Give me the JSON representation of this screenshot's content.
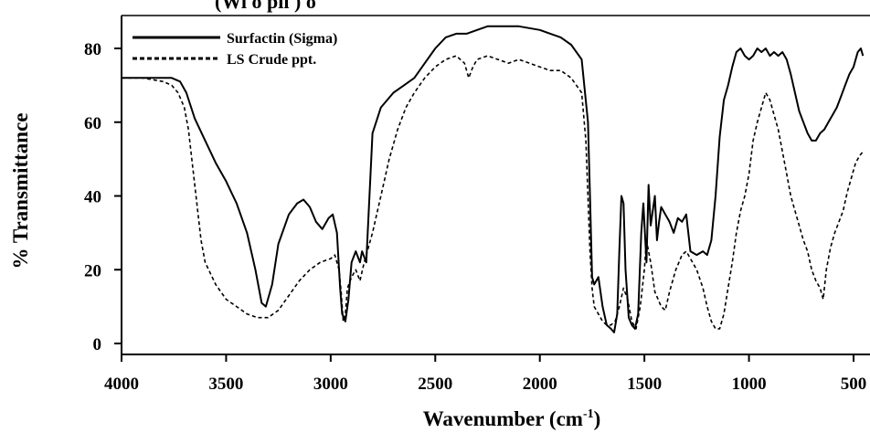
{
  "chart_data": {
    "type": "line",
    "title": "",
    "top_clipped_text": "(Wi o pli ) o",
    "xlabel": "Wavenumber (cm",
    "xlabel_sup": "-1",
    "xlabel_close": ")",
    "ylabel": "% Transmittance",
    "xlim": [
      4000,
      450
    ],
    "ylim": [
      -5,
      88
    ],
    "x_ticks": [
      4000,
      3500,
      3000,
      2500,
      2000,
      1500,
      1000,
      500
    ],
    "x_tick_labels": [
      "4000",
      "3500",
      "3000",
      "2500",
      "2000",
      "1500",
      "1000",
      "500"
    ],
    "y_ticks": [
      0,
      20,
      40,
      60,
      80
    ],
    "y_tick_labels": [
      "0",
      "20",
      "40",
      "60",
      "80"
    ],
    "grid": false,
    "legend_position": "top-left",
    "series": [
      {
        "name": "Surfactin (Sigma)",
        "style": "solid",
        "color": "#000000",
        "points": [
          [
            4000,
            72
          ],
          [
            3850,
            72
          ],
          [
            3760,
            72
          ],
          [
            3720,
            71
          ],
          [
            3690,
            68
          ],
          [
            3650,
            61
          ],
          [
            3600,
            55
          ],
          [
            3550,
            49
          ],
          [
            3500,
            44
          ],
          [
            3450,
            38
          ],
          [
            3400,
            30
          ],
          [
            3360,
            20
          ],
          [
            3330,
            11
          ],
          [
            3310,
            10
          ],
          [
            3280,
            16
          ],
          [
            3250,
            27
          ],
          [
            3200,
            35
          ],
          [
            3160,
            38
          ],
          [
            3130,
            39
          ],
          [
            3100,
            37
          ],
          [
            3070,
            33
          ],
          [
            3040,
            31
          ],
          [
            3010,
            34
          ],
          [
            2990,
            35
          ],
          [
            2970,
            30
          ],
          [
            2955,
            15
          ],
          [
            2945,
            8
          ],
          [
            2930,
            6
          ],
          [
            2915,
            12
          ],
          [
            2900,
            22
          ],
          [
            2880,
            25
          ],
          [
            2860,
            22
          ],
          [
            2850,
            25
          ],
          [
            2830,
            22
          ],
          [
            2800,
            57
          ],
          [
            2760,
            64
          ],
          [
            2700,
            68
          ],
          [
            2650,
            70
          ],
          [
            2600,
            72
          ],
          [
            2550,
            76
          ],
          [
            2500,
            80
          ],
          [
            2450,
            83
          ],
          [
            2400,
            84
          ],
          [
            2350,
            84
          ],
          [
            2300,
            85
          ],
          [
            2250,
            86
          ],
          [
            2200,
            86
          ],
          [
            2100,
            86
          ],
          [
            2000,
            85
          ],
          [
            1950,
            84
          ],
          [
            1900,
            83
          ],
          [
            1850,
            81
          ],
          [
            1800,
            77
          ],
          [
            1770,
            60
          ],
          [
            1760,
            40
          ],
          [
            1750,
            18
          ],
          [
            1740,
            16
          ],
          [
            1720,
            18
          ],
          [
            1700,
            10
          ],
          [
            1680,
            5
          ],
          [
            1660,
            4
          ],
          [
            1645,
            3
          ],
          [
            1630,
            8
          ],
          [
            1620,
            25
          ],
          [
            1610,
            40
          ],
          [
            1600,
            38
          ],
          [
            1590,
            20
          ],
          [
            1575,
            7
          ],
          [
            1560,
            5
          ],
          [
            1545,
            4
          ],
          [
            1530,
            8
          ],
          [
            1515,
            30
          ],
          [
            1505,
            38
          ],
          [
            1490,
            22
          ],
          [
            1480,
            43
          ],
          [
            1470,
            32
          ],
          [
            1460,
            36
          ],
          [
            1450,
            40
          ],
          [
            1440,
            28
          ],
          [
            1430,
            33
          ],
          [
            1420,
            37
          ],
          [
            1400,
            35
          ],
          [
            1380,
            33
          ],
          [
            1360,
            30
          ],
          [
            1340,
            34
          ],
          [
            1320,
            33
          ],
          [
            1300,
            35
          ],
          [
            1280,
            25
          ],
          [
            1250,
            24
          ],
          [
            1220,
            25
          ],
          [
            1200,
            24
          ],
          [
            1180,
            28
          ],
          [
            1160,
            40
          ],
          [
            1140,
            56
          ],
          [
            1120,
            66
          ],
          [
            1100,
            70
          ],
          [
            1080,
            75
          ],
          [
            1060,
            79
          ],
          [
            1040,
            80
          ],
          [
            1020,
            78
          ],
          [
            1000,
            77
          ],
          [
            980,
            78
          ],
          [
            960,
            80
          ],
          [
            940,
            79
          ],
          [
            920,
            80
          ],
          [
            900,
            78
          ],
          [
            880,
            79
          ],
          [
            860,
            78
          ],
          [
            840,
            79
          ],
          [
            820,
            77
          ],
          [
            800,
            73
          ],
          [
            780,
            68
          ],
          [
            760,
            63
          ],
          [
            740,
            60
          ],
          [
            720,
            57
          ],
          [
            700,
            55
          ],
          [
            680,
            55
          ],
          [
            660,
            57
          ],
          [
            640,
            58
          ],
          [
            620,
            60
          ],
          [
            600,
            62
          ],
          [
            580,
            64
          ],
          [
            560,
            67
          ],
          [
            540,
            70
          ],
          [
            520,
            73
          ],
          [
            500,
            75
          ],
          [
            480,
            79
          ],
          [
            465,
            80
          ],
          [
            455,
            78
          ]
        ]
      },
      {
        "name": "LS Crude ppt.",
        "style": "dashed",
        "color": "#000000",
        "points": [
          [
            4000,
            72
          ],
          [
            3900,
            72
          ],
          [
            3800,
            71
          ],
          [
            3760,
            70
          ],
          [
            3730,
            68
          ],
          [
            3700,
            64
          ],
          [
            3680,
            58
          ],
          [
            3660,
            48
          ],
          [
            3640,
            38
          ],
          [
            3620,
            28
          ],
          [
            3600,
            22
          ],
          [
            3550,
            16
          ],
          [
            3500,
            12
          ],
          [
            3450,
            10
          ],
          [
            3400,
            8
          ],
          [
            3350,
            7
          ],
          [
            3300,
            7
          ],
          [
            3250,
            9
          ],
          [
            3200,
            13
          ],
          [
            3150,
            17
          ],
          [
            3100,
            20
          ],
          [
            3050,
            22
          ],
          [
            3000,
            23
          ],
          [
            2980,
            24
          ],
          [
            2960,
            20
          ],
          [
            2950,
            14
          ],
          [
            2940,
            6
          ],
          [
            2930,
            8
          ],
          [
            2920,
            15
          ],
          [
            2900,
            18
          ],
          [
            2880,
            20
          ],
          [
            2860,
            17
          ],
          [
            2840,
            22
          ],
          [
            2800,
            30
          ],
          [
            2760,
            40
          ],
          [
            2720,
            50
          ],
          [
            2680,
            58
          ],
          [
            2640,
            64
          ],
          [
            2600,
            68
          ],
          [
            2550,
            72
          ],
          [
            2500,
            75
          ],
          [
            2450,
            77
          ],
          [
            2400,
            78
          ],
          [
            2360,
            76
          ],
          [
            2340,
            72
          ],
          [
            2320,
            75
          ],
          [
            2300,
            77
          ],
          [
            2250,
            78
          ],
          [
            2200,
            77
          ],
          [
            2150,
            76
          ],
          [
            2100,
            77
          ],
          [
            2050,
            76
          ],
          [
            2000,
            75
          ],
          [
            1950,
            74
          ],
          [
            1900,
            74
          ],
          [
            1850,
            72
          ],
          [
            1800,
            68
          ],
          [
            1780,
            55
          ],
          [
            1760,
            25
          ],
          [
            1750,
            15
          ],
          [
            1740,
            10
          ],
          [
            1720,
            8
          ],
          [
            1700,
            6
          ],
          [
            1680,
            5
          ],
          [
            1660,
            5
          ],
          [
            1640,
            6
          ],
          [
            1620,
            10
          ],
          [
            1600,
            15
          ],
          [
            1580,
            12
          ],
          [
            1560,
            6
          ],
          [
            1540,
            4
          ],
          [
            1520,
            10
          ],
          [
            1500,
            20
          ],
          [
            1490,
            28
          ],
          [
            1470,
            22
          ],
          [
            1450,
            14
          ],
          [
            1420,
            10
          ],
          [
            1400,
            9
          ],
          [
            1380,
            14
          ],
          [
            1350,
            20
          ],
          [
            1320,
            24
          ],
          [
            1300,
            25
          ],
          [
            1280,
            23
          ],
          [
            1250,
            20
          ],
          [
            1220,
            15
          ],
          [
            1200,
            10
          ],
          [
            1180,
            6
          ],
          [
            1160,
            4
          ],
          [
            1140,
            4
          ],
          [
            1120,
            8
          ],
          [
            1100,
            15
          ],
          [
            1080,
            22
          ],
          [
            1060,
            30
          ],
          [
            1040,
            36
          ],
          [
            1020,
            40
          ],
          [
            1000,
            46
          ],
          [
            980,
            55
          ],
          [
            960,
            60
          ],
          [
            940,
            64
          ],
          [
            920,
            68
          ],
          [
            900,
            66
          ],
          [
            880,
            62
          ],
          [
            860,
            58
          ],
          [
            840,
            52
          ],
          [
            820,
            46
          ],
          [
            800,
            40
          ],
          [
            780,
            36
          ],
          [
            760,
            32
          ],
          [
            740,
            28
          ],
          [
            720,
            25
          ],
          [
            700,
            20
          ],
          [
            680,
            17
          ],
          [
            660,
            15
          ],
          [
            645,
            12
          ],
          [
            630,
            20
          ],
          [
            610,
            26
          ],
          [
            590,
            30
          ],
          [
            570,
            33
          ],
          [
            550,
            36
          ],
          [
            530,
            41
          ],
          [
            510,
            45
          ],
          [
            490,
            49
          ],
          [
            470,
            51
          ],
          [
            455,
            52
          ]
        ]
      }
    ]
  }
}
